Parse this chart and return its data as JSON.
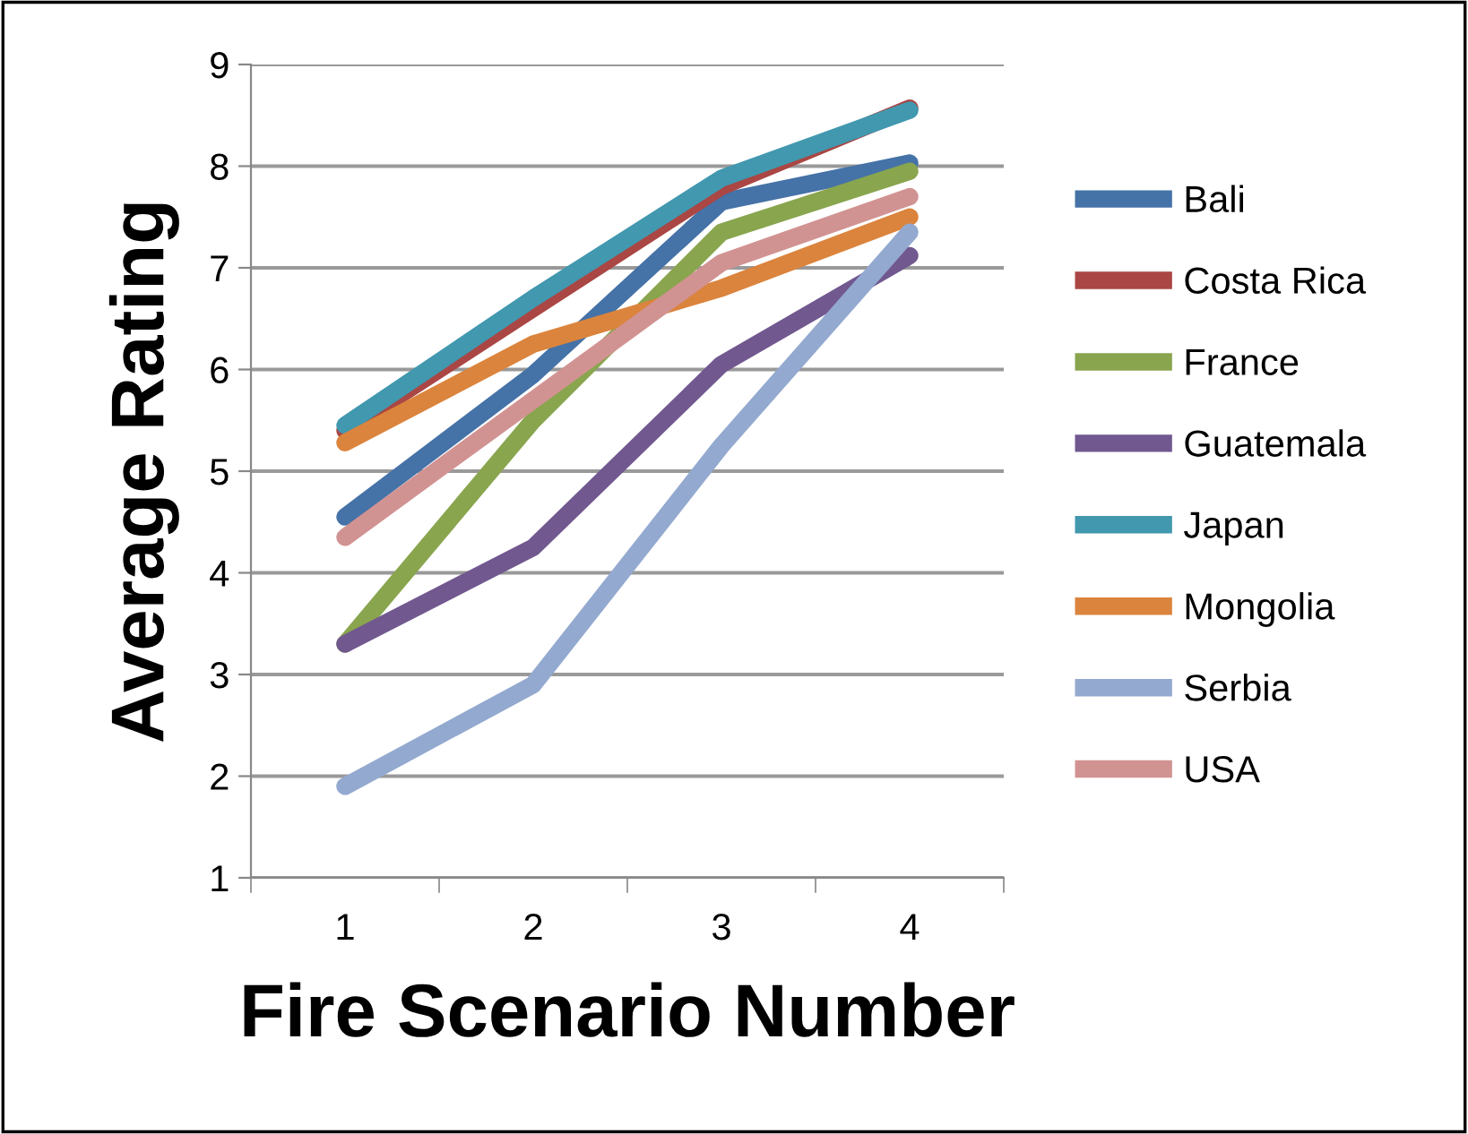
{
  "chart_data": {
    "type": "line",
    "xlabel": "Fire Scenario Number",
    "ylabel": "Average Rating",
    "categories": [
      "1",
      "2",
      "3",
      "4"
    ],
    "ylim": [
      1,
      9
    ],
    "yticks": [
      1,
      2,
      3,
      4,
      5,
      6,
      7,
      8,
      9
    ],
    "grid": "y",
    "legend": "right",
    "marker": "none",
    "line_style": "solid",
    "series": [
      {
        "name": "Bali",
        "color": "#4572a7",
        "values": [
          4.55,
          5.95,
          7.65,
          8.03
        ]
      },
      {
        "name": "Costa Rica",
        "color": "#aa4643",
        "values": [
          5.4,
          6.6,
          7.8,
          8.57
        ]
      },
      {
        "name": "France",
        "color": "#89a54e",
        "values": [
          3.3,
          5.5,
          7.35,
          7.95
        ]
      },
      {
        "name": "Guatemala",
        "color": "#71588f",
        "values": [
          3.3,
          4.25,
          6.05,
          7.12
        ]
      },
      {
        "name": "Japan",
        "color": "#4198af",
        "values": [
          5.45,
          6.7,
          7.88,
          8.55
        ]
      },
      {
        "name": "Mongolia",
        "color": "#db843d",
        "values": [
          5.28,
          6.25,
          6.8,
          7.5
        ]
      },
      {
        "name": "Serbia",
        "color": "#93a9cf",
        "values": [
          1.9,
          2.9,
          5.25,
          7.35
        ]
      },
      {
        "name": "USA",
        "color": "#d19392",
        "values": [
          4.35,
          5.7,
          7.05,
          7.7
        ]
      }
    ]
  }
}
